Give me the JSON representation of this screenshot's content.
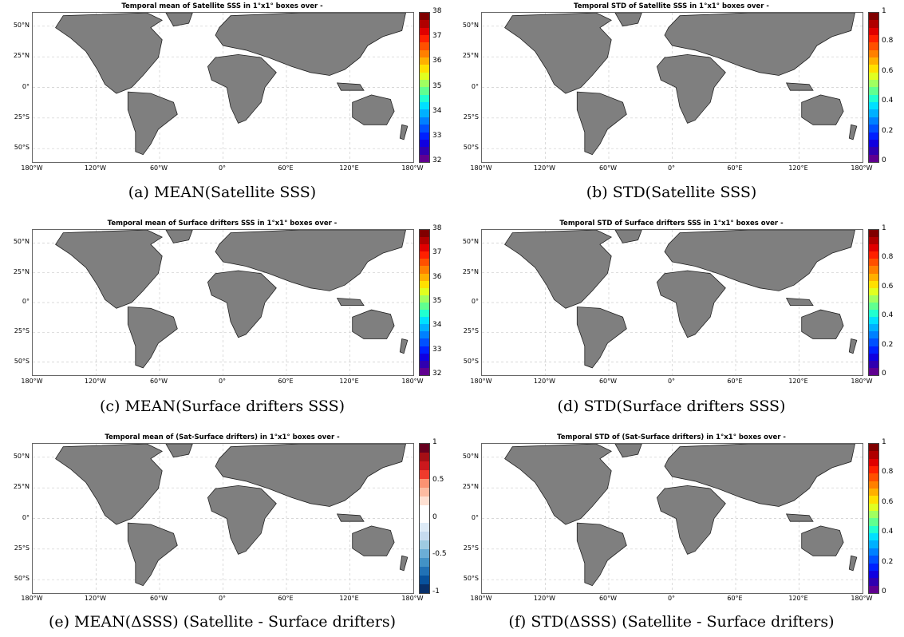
{
  "lat_labels": [
    "50°N",
    "25°N",
    "0°",
    "25°S",
    "50°S"
  ],
  "lon_labels": [
    "180°W",
    "120°W",
    "60°W",
    "0°",
    "60°E",
    "120°E",
    "180°W"
  ],
  "colors": {
    "land": "#7f7f7f",
    "rainbow": [
      "#800000",
      "#b00000",
      "#e00000",
      "#ff2000",
      "#ff5000",
      "#ff8000",
      "#ffb000",
      "#ffe000",
      "#e0ff20",
      "#a0ff60",
      "#60ff90",
      "#20ffd0",
      "#00e0ff",
      "#00b0ff",
      "#0080ff",
      "#0050ff",
      "#0020ff",
      "#1000e0",
      "#3000b0",
      "#600090"
    ],
    "diverging": [
      "#67001f",
      "#a50f15",
      "#cb181d",
      "#ef3b2c",
      "#fc9272",
      "#fcbba1",
      "#fee0d2",
      "#ffffff",
      "#ffffff",
      "#deebf7",
      "#c6dbef",
      "#9ecae1",
      "#6baed6",
      "#4292c6",
      "#2171b5",
      "#08519c",
      "#08306b"
    ]
  },
  "panels": [
    {
      "title": "Temporal mean of Satellite SSS in 1°x1° boxes over -",
      "caption": "(a) MEAN(Satellite SSS)",
      "colorbar": "rainbow",
      "ticks": [
        "38",
        "37",
        "36",
        "35",
        "34",
        "33",
        "32"
      ]
    },
    {
      "title": "Temporal STD of Satellite SSS in 1°x1° boxes over -",
      "caption": "(b) STD(Satellite SSS)",
      "colorbar": "rainbow",
      "ticks": [
        "1",
        "0.8",
        "0.6",
        "0.4",
        "0.2",
        "0"
      ]
    },
    {
      "title": "Temporal mean of Surface drifters SSS in 1°x1° boxes over -",
      "caption": "(c) MEAN(Surface drifters SSS)",
      "colorbar": "rainbow",
      "ticks": [
        "38",
        "37",
        "36",
        "35",
        "34",
        "33",
        "32"
      ]
    },
    {
      "title": "Temporal STD of Surface drifters SSS in 1°x1° boxes over -",
      "caption": "(d) STD(Surface drifters SSS)",
      "colorbar": "rainbow",
      "ticks": [
        "1",
        "0.8",
        "0.6",
        "0.4",
        "0.2",
        "0"
      ]
    },
    {
      "title": "Temporal mean of (Sat-Surface drifters) in 1°x1° boxes over -",
      "caption": "(e) MEAN(ΔSSS) (Satellite - Surface drifters)",
      "colorbar": "diverging",
      "ticks": [
        "1",
        "0.5",
        "0",
        "-0.5",
        "-1"
      ]
    },
    {
      "title": "Temporal STD of (Sat-Surface drifters) in 1°x1° boxes over -",
      "caption": "(f) STD(ΔSSS) (Satellite - Surface drifters)",
      "colorbar": "rainbow",
      "ticks": [
        "1",
        "0.8",
        "0.6",
        "0.4",
        "0.2",
        "0"
      ]
    }
  ]
}
